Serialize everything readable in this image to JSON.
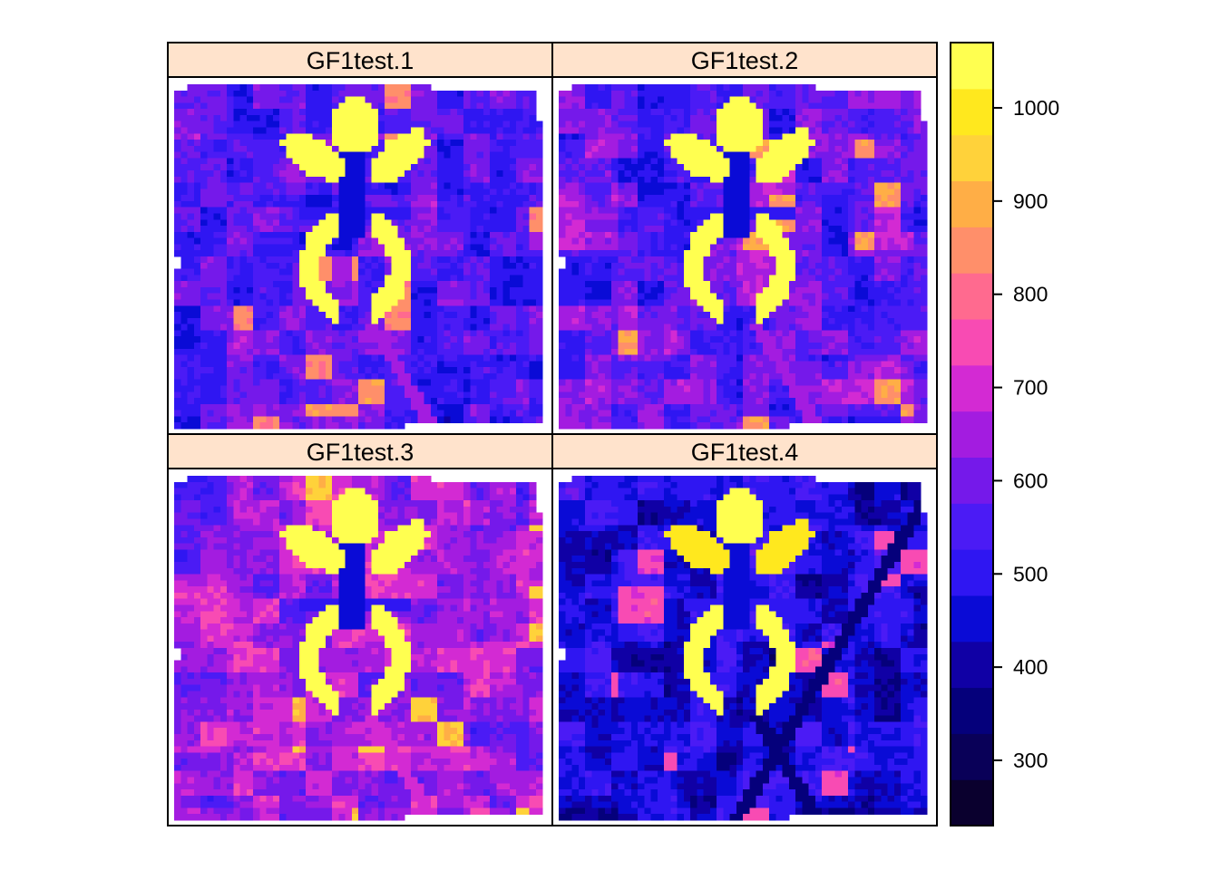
{
  "chart_data": {
    "type": "heatmap",
    "title": "",
    "xlabel": "",
    "ylabel": "",
    "layout": "2x2 panel grid (lattice levelplot)",
    "panels": [
      {
        "name": "GF1test.1",
        "background_level": 560,
        "road_level": 640
      },
      {
        "name": "GF1test.2",
        "background_level": 590,
        "road_level": 670
      },
      {
        "name": "GF1test.3",
        "background_level": 650,
        "road_level": 720
      },
      {
        "name": "GF1test.4",
        "background_level": 460,
        "road_level": 350
      }
    ],
    "features": {
      "high_value_shape": "yellow flower-like structure (top circle, two side petals, U-shaped ring below)",
      "high_value": 1060,
      "cross_level": 470
    },
    "colorbar": {
      "range": [
        230,
        1070
      ],
      "bins": 16,
      "ticks": [
        1000,
        900,
        800,
        700,
        600,
        500,
        400,
        300
      ],
      "colors": [
        "#0A002E",
        "#090058",
        "#05007B",
        "#1000A5",
        "#0A0BD6",
        "#2F16F2",
        "#4B1BF5",
        "#7519EA",
        "#A31CE0",
        "#D32AD3",
        "#F84BB3",
        "#FF6A8F",
        "#FF8F6A",
        "#FFAE46",
        "#FFD23A",
        "#FFE81E",
        "#FFFF50"
      ],
      "position": "right"
    },
    "grid": false,
    "strip_color": "#FFE3CC"
  }
}
